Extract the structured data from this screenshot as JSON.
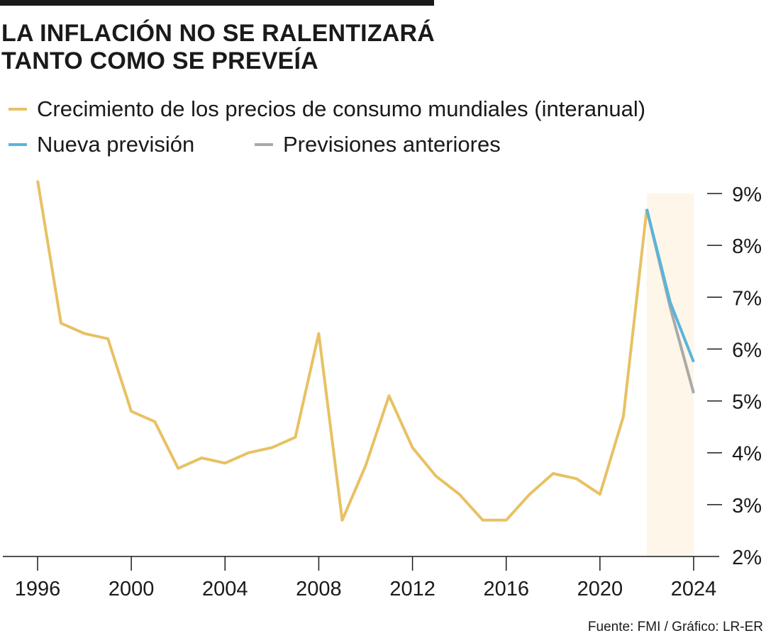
{
  "title_lines": [
    "LA INFLACIÓN NO SE RALENTIZARÁ",
    "TANTO COMO SE PREVEÍA"
  ],
  "source": "Fuente: FMI / Gráfico: LR-ER",
  "chart_data": {
    "type": "line",
    "title": "LA INFLACIÓN NO SE RALENTIZARÁ TANTO COMO SE PREVEÍA",
    "xlim": [
      1996,
      2024
    ],
    "ylim": [
      2,
      9
    ],
    "x_ticks": [
      1996,
      2000,
      2004,
      2008,
      2012,
      2016,
      2020,
      2024
    ],
    "y_ticks": [
      2,
      3,
      4,
      5,
      6,
      7,
      8,
      9
    ],
    "y_tick_labels": [
      "2%",
      "3%",
      "4%",
      "5%",
      "6%",
      "7%",
      "8%",
      "9%"
    ],
    "y_axis_position": "right",
    "grid": false,
    "legend_position": "top-left",
    "highlight_x_range": [
      2022,
      2024
    ],
    "highlight_color": "#fdf6e9",
    "axis_color": "#1a1a1a",
    "series": [
      {
        "name": "Crecimiento de los precios de consumo mundiales (interanual)",
        "color": "#e8c164",
        "x": [
          1996,
          1997,
          1998,
          1999,
          2000,
          2001,
          2002,
          2003,
          2004,
          2005,
          2006,
          2007,
          2008,
          2009,
          2010,
          2011,
          2012,
          2013,
          2014,
          2015,
          2016,
          2017,
          2018,
          2019,
          2020,
          2021,
          2022
        ],
        "y": [
          9.25,
          6.5,
          6.3,
          6.2,
          4.8,
          4.6,
          3.7,
          3.9,
          3.8,
          4.0,
          4.1,
          4.3,
          6.3,
          2.7,
          3.75,
          5.1,
          4.1,
          3.55,
          3.2,
          2.7,
          2.7,
          3.2,
          3.6,
          3.5,
          3.2,
          4.7,
          8.7
        ]
      },
      {
        "name": "Nueva previsión",
        "color": "#5ab4dc",
        "x": [
          2022,
          2023,
          2024
        ],
        "y": [
          8.7,
          6.9,
          5.75
        ]
      },
      {
        "name": "Previsiones anteriores",
        "color": "#a9a9a9",
        "x": [
          2022,
          2023,
          2024
        ],
        "y": [
          8.7,
          6.8,
          5.15
        ]
      }
    ]
  }
}
